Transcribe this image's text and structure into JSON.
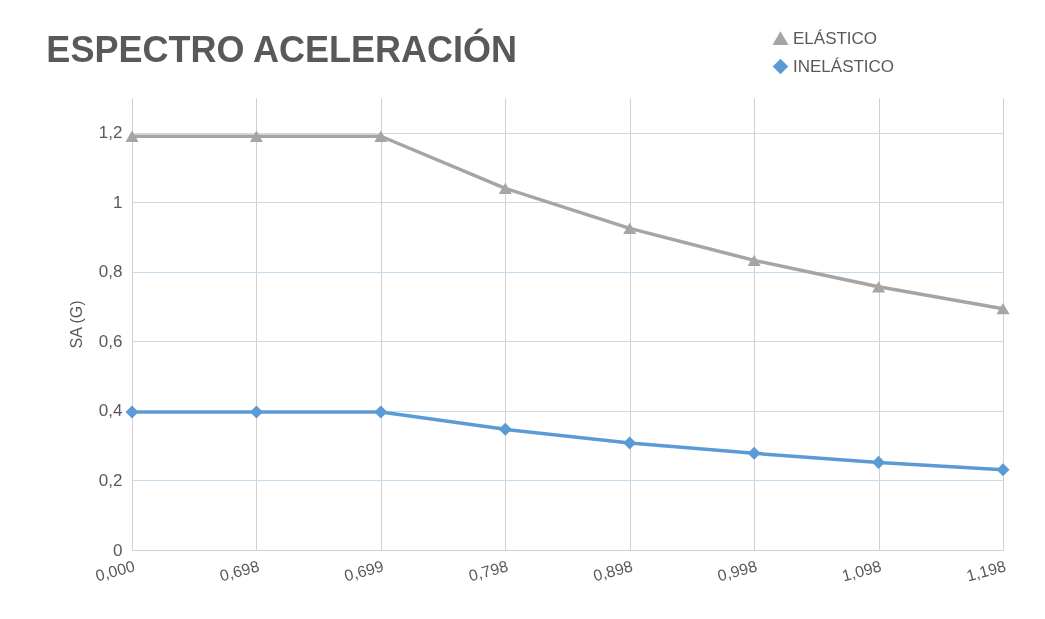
{
  "chart_data": {
    "type": "line",
    "title": "ESPECTRO ACELERACIÓN",
    "ylabel": "SA (G)",
    "categories": [
      "0,000",
      "0,698",
      "0,699",
      "0,798",
      "0,898",
      "0,998",
      "1,098",
      "1,198"
    ],
    "series": [
      {
        "name": "ELÁSTICO",
        "color": "#a5a5a5",
        "marker": "triangle",
        "values": [
          1.19,
          1.19,
          1.19,
          1.04,
          0.925,
          0.833,
          0.757,
          0.694
        ]
      },
      {
        "name": "INELÁSTICO",
        "color": "#5b9bd5",
        "marker": "diamond",
        "values": [
          0.397,
          0.397,
          0.397,
          0.347,
          0.308,
          0.278,
          0.252,
          0.231
        ]
      }
    ],
    "ylim": [
      0,
      1.3
    ],
    "yticks": [
      0,
      {
        "value": 0.2,
        "label": "0,2"
      },
      {
        "value": 0.4,
        "label": "0,4"
      },
      {
        "value": 0.6,
        "label": "0,6"
      },
      {
        "value": 0.8,
        "label": "0,8"
      },
      1,
      {
        "value": 1.2,
        "label": "1,2"
      }
    ],
    "grid": true,
    "legend": "top right",
    "line_style": "solid"
  }
}
